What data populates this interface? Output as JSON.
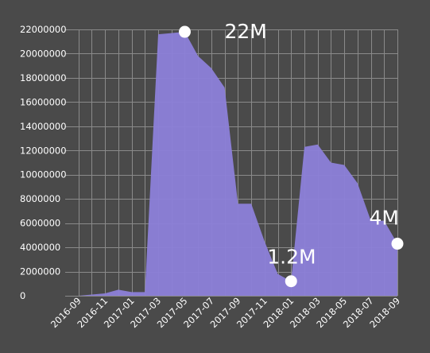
{
  "colors": {
    "background": "#4a4a4a",
    "area_fill": "#8c7fd9",
    "grid": "#8a8a8a",
    "text": "#ffffff",
    "marker": "#ffffff"
  },
  "chart_data": {
    "type": "area",
    "title": "",
    "xlabel": "",
    "ylabel": "",
    "grid": true,
    "ylim": [
      0,
      22000000
    ],
    "xlim": [
      "2016-08",
      "2018-09"
    ],
    "y_ticks": [
      0,
      2000000,
      4000000,
      6000000,
      8000000,
      10000000,
      12000000,
      14000000,
      16000000,
      18000000,
      20000000,
      22000000
    ],
    "y_tick_labels": [
      "0",
      "2000000",
      "4000000",
      "6000000",
      "8000000",
      "10000000",
      "12000000",
      "14000000",
      "16000000",
      "18000000",
      "20000000",
      "22000000"
    ],
    "x_ticks": [
      "2016-09",
      "2016-11",
      "2017-01",
      "2017-03",
      "2017-05",
      "2017-07",
      "2017-09",
      "2017-11",
      "2018-01",
      "2018-03",
      "2018-05",
      "2018-07",
      "2018-09"
    ],
    "series": [
      {
        "x": [
          "2016-09",
          "2016-10",
          "2016-11",
          "2016-12",
          "2017-01",
          "2017-02",
          "2017-03",
          "2017-04",
          "2017-05",
          "2017-06",
          "2017-07",
          "2017-08",
          "2017-09",
          "2017-10",
          "2017-11",
          "2017-12",
          "2018-01",
          "2018-02",
          "2018-03",
          "2018-04",
          "2018-05",
          "2018-06",
          "2018-07",
          "2018-08",
          "2018-09"
        ],
        "values": [
          0,
          100000,
          200000,
          500000,
          300000,
          300000,
          21600000,
          21700000,
          21800000,
          19800000,
          18800000,
          17200000,
          7600000,
          7600000,
          4500000,
          1800000,
          1200000,
          12300000,
          12500000,
          11000000,
          10800000,
          9300000,
          6200000,
          6200000,
          4300000
        ]
      }
    ],
    "annotations": [
      {
        "x": "2017-05",
        "y": 21800000,
        "label": "22M"
      },
      {
        "x": "2018-01",
        "y": 1200000,
        "label": "1.2M"
      },
      {
        "x": "2018-09",
        "y": 4300000,
        "label": "4M"
      }
    ]
  }
}
